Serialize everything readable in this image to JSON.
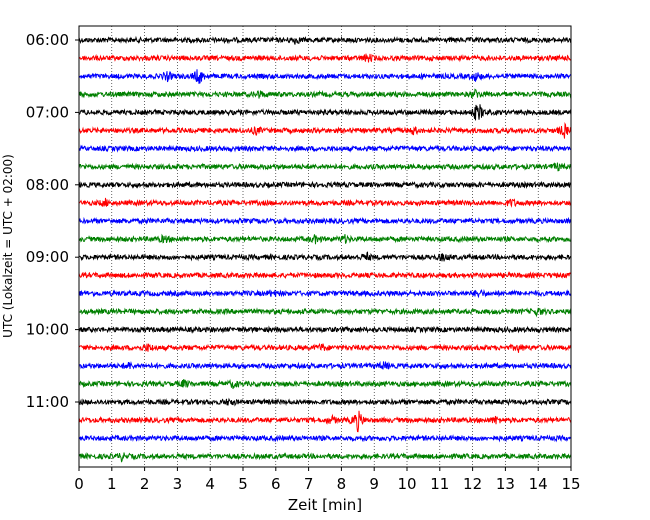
{
  "chart_data": {
    "type": "line",
    "subtype": "helicorder",
    "xlabel": "Zeit  [min]",
    "ylabel": "UTC (Lokalzeit = UTC + 02:00)",
    "xlim": [
      0,
      15
    ],
    "x_ticks": [
      0,
      1,
      2,
      3,
      4,
      5,
      6,
      7,
      8,
      9,
      10,
      11,
      12,
      13,
      14,
      15
    ],
    "x_tick_labels": [
      "0",
      "1",
      "2",
      "3",
      "4",
      "5",
      "6",
      "7",
      "8",
      "9",
      "10",
      "11",
      "12",
      "13",
      "14",
      "15"
    ],
    "y_tick_labels": [
      "06:00",
      "07:00",
      "08:00",
      "09:00",
      "10:00",
      "11:00"
    ],
    "trace_minutes": 15,
    "trace_count": 24,
    "first_trace_start": "06:00",
    "vertical_grid": "dotted",
    "color_cycle": [
      "#000000",
      "#ff0000",
      "#0000ff",
      "#008000"
    ],
    "events": [
      {
        "trace": 0,
        "minute": 6.6,
        "amplitude": 3
      },
      {
        "trace": 1,
        "minute": 8.8,
        "amplitude": 4
      },
      {
        "trace": 2,
        "minute": 2.7,
        "amplitude": 4
      },
      {
        "trace": 2,
        "minute": 3.65,
        "amplitude": 8
      },
      {
        "trace": 2,
        "minute": 12.1,
        "amplitude": 4
      },
      {
        "trace": 3,
        "minute": 5.5,
        "amplitude": 3
      },
      {
        "trace": 3,
        "minute": 12.1,
        "amplitude": 4
      },
      {
        "trace": 4,
        "minute": 12.1,
        "amplitude": 4
      },
      {
        "trace": 4,
        "minute": 12.2,
        "amplitude": 6
      },
      {
        "trace": 5,
        "minute": 14.8,
        "amplitude": 6
      },
      {
        "trace": 5,
        "minute": 10.2,
        "amplitude": 3
      },
      {
        "trace": 5,
        "minute": 5.4,
        "amplitude": 3
      },
      {
        "trace": 7,
        "minute": 14.6,
        "amplitude": 3
      },
      {
        "trace": 9,
        "minute": 0.8,
        "amplitude": 3
      },
      {
        "trace": 9,
        "minute": 13.2,
        "amplitude": 3
      },
      {
        "trace": 11,
        "minute": 7.2,
        "amplitude": 3
      },
      {
        "trace": 11,
        "minute": 8.1,
        "amplitude": 3
      },
      {
        "trace": 11,
        "minute": 2.6,
        "amplitude": 3
      },
      {
        "trace": 12,
        "minute": 8.75,
        "amplitude": 4
      },
      {
        "trace": 12,
        "minute": 11.1,
        "amplitude": 3
      },
      {
        "trace": 14,
        "minute": 5.9,
        "amplitude": 3
      },
      {
        "trace": 14,
        "minute": 12.2,
        "amplitude": 3
      },
      {
        "trace": 15,
        "minute": 14.0,
        "amplitude": 3
      },
      {
        "trace": 17,
        "minute": 13.4,
        "amplitude": 3
      },
      {
        "trace": 17,
        "minute": 7.4,
        "amplitude": 3
      },
      {
        "trace": 17,
        "minute": 2.1,
        "amplitude": 3
      },
      {
        "trace": 18,
        "minute": 9.3,
        "amplitude": 3
      },
      {
        "trace": 18,
        "minute": 1.5,
        "amplitude": 3
      },
      {
        "trace": 19,
        "minute": 4.7,
        "amplitude": 3
      },
      {
        "trace": 19,
        "minute": 3.2,
        "amplitude": 3
      },
      {
        "trace": 20,
        "minute": 4.6,
        "amplitude": 3
      },
      {
        "trace": 21,
        "minute": 8.5,
        "amplitude": 10
      },
      {
        "trace": 21,
        "minute": 12.7,
        "amplitude": 3
      },
      {
        "trace": 21,
        "minute": 7.7,
        "amplitude": 3
      },
      {
        "trace": 23,
        "minute": 1.3,
        "amplitude": 3
      }
    ]
  }
}
